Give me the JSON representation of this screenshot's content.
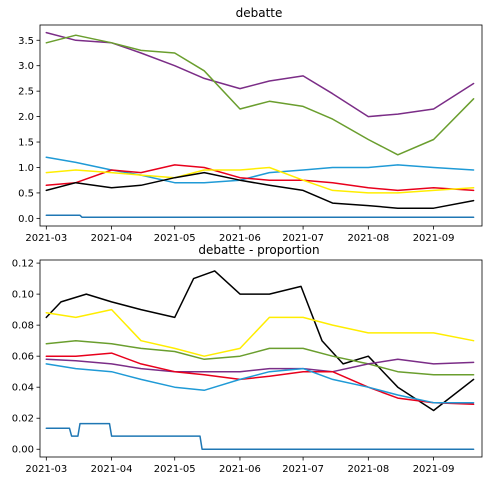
{
  "chart_data": [
    {
      "type": "line",
      "title": "debatte",
      "xlabel": "",
      "ylabel": "",
      "xlim": [
        "2021-02-26",
        "2021-09-24"
      ],
      "ylim": [
        -0.15,
        3.8
      ],
      "x_ticks": [
        "2021-03",
        "2021-04",
        "2021-05",
        "2021-06",
        "2021-07",
        "2021-08",
        "2021-09"
      ],
      "y_ticks": [
        "0.0",
        "0.5",
        "1.0",
        "1.5",
        "2.0",
        "2.5",
        "3.0",
        "3.5"
      ],
      "y_tick_values": [
        0,
        0.5,
        1,
        1.5,
        2,
        2.5,
        3,
        3.5
      ],
      "grid": false,
      "series": [
        {
          "color": "#7b2d87",
          "x": [
            "2021-03-01",
            "2021-03-15",
            "2021-04-01",
            "2021-04-15",
            "2021-05-01",
            "2021-05-15",
            "2021-06-01",
            "2021-06-15",
            "2021-07-01",
            "2021-07-15",
            "2021-08-01",
            "2021-08-15",
            "2021-09-01",
            "2021-09-20"
          ],
          "y": [
            3.65,
            3.5,
            3.45,
            3.25,
            3.0,
            2.75,
            2.55,
            2.7,
            2.8,
            2.45,
            2.0,
            2.05,
            2.15,
            2.65
          ]
        },
        {
          "color": "#6a9e2e",
          "x": [
            "2021-03-01",
            "2021-03-15",
            "2021-04-01",
            "2021-04-15",
            "2021-05-01",
            "2021-05-15",
            "2021-06-01",
            "2021-06-15",
            "2021-07-01",
            "2021-07-15",
            "2021-08-01",
            "2021-08-15",
            "2021-09-01",
            "2021-09-20"
          ],
          "y": [
            3.45,
            3.6,
            3.45,
            3.3,
            3.25,
            2.9,
            2.15,
            2.3,
            2.2,
            1.95,
            1.55,
            1.25,
            1.55,
            2.35
          ]
        },
        {
          "color": "#1f9ad6",
          "x": [
            "2021-03-01",
            "2021-03-15",
            "2021-04-01",
            "2021-04-15",
            "2021-05-01",
            "2021-05-15",
            "2021-06-01",
            "2021-06-15",
            "2021-07-01",
            "2021-07-15",
            "2021-08-01",
            "2021-08-15",
            "2021-09-01",
            "2021-09-20"
          ],
          "y": [
            1.2,
            1.1,
            0.95,
            0.85,
            0.7,
            0.7,
            0.75,
            0.9,
            0.95,
            1.0,
            1.0,
            1.05,
            1.0,
            0.95
          ]
        },
        {
          "color": "#e8001c",
          "x": [
            "2021-03-01",
            "2021-03-15",
            "2021-04-01",
            "2021-04-15",
            "2021-05-01",
            "2021-05-15",
            "2021-06-01",
            "2021-06-15",
            "2021-07-01",
            "2021-07-15",
            "2021-08-01",
            "2021-08-15",
            "2021-09-01",
            "2021-09-20"
          ],
          "y": [
            0.65,
            0.7,
            0.95,
            0.9,
            1.05,
            1.0,
            0.8,
            0.75,
            0.75,
            0.7,
            0.6,
            0.55,
            0.6,
            0.55
          ]
        },
        {
          "color": "#ffed00",
          "x": [
            "2021-03-01",
            "2021-03-15",
            "2021-04-01",
            "2021-04-15",
            "2021-05-01",
            "2021-05-15",
            "2021-06-01",
            "2021-06-15",
            "2021-07-01",
            "2021-07-15",
            "2021-08-01",
            "2021-08-15",
            "2021-09-01",
            "2021-09-20"
          ],
          "y": [
            0.9,
            0.95,
            0.9,
            0.85,
            0.8,
            0.95,
            0.95,
            1.0,
            0.75,
            0.55,
            0.5,
            0.5,
            0.55,
            0.6
          ]
        },
        {
          "color": "#000000",
          "x": [
            "2021-03-01",
            "2021-03-15",
            "2021-04-01",
            "2021-04-15",
            "2021-05-01",
            "2021-05-15",
            "2021-06-01",
            "2021-06-15",
            "2021-07-01",
            "2021-07-15",
            "2021-08-01",
            "2021-08-15",
            "2021-09-01",
            "2021-09-20"
          ],
          "y": [
            0.55,
            0.7,
            0.6,
            0.65,
            0.8,
            0.9,
            0.75,
            0.65,
            0.55,
            0.3,
            0.25,
            0.2,
            0.2,
            0.35
          ]
        },
        {
          "color": "#1f77b4",
          "x": [
            "2021-03-01",
            "2021-03-17",
            "2021-03-18",
            "2021-09-20"
          ],
          "y": [
            0.06,
            0.06,
            0.02,
            0.02
          ]
        }
      ]
    },
    {
      "type": "line",
      "title": "debatte - proportion",
      "xlabel": "",
      "ylabel": "",
      "xlim": [
        "2021-02-26",
        "2021-09-24"
      ],
      "ylim": [
        -0.005,
        0.122
      ],
      "x_ticks": [
        "2021-03",
        "2021-04",
        "2021-05",
        "2021-06",
        "2021-07",
        "2021-08",
        "2021-09"
      ],
      "y_ticks": [
        "0.00",
        "0.02",
        "0.04",
        "0.06",
        "0.08",
        "0.10",
        "0.12"
      ],
      "y_tick_values": [
        0,
        0.02,
        0.04,
        0.06,
        0.08,
        0.1,
        0.12
      ],
      "grid": false,
      "series": [
        {
          "color": "#000000",
          "x": [
            "2021-03-01",
            "2021-03-08",
            "2021-03-20",
            "2021-04-01",
            "2021-04-15",
            "2021-05-01",
            "2021-05-10",
            "2021-05-20",
            "2021-06-01",
            "2021-06-15",
            "2021-06-30",
            "2021-07-10",
            "2021-07-20",
            "2021-08-01",
            "2021-08-15",
            "2021-09-01",
            "2021-09-20"
          ],
          "y": [
            0.085,
            0.095,
            0.1,
            0.095,
            0.09,
            0.085,
            0.11,
            0.115,
            0.1,
            0.1,
            0.105,
            0.07,
            0.055,
            0.06,
            0.04,
            0.025,
            0.045
          ]
        },
        {
          "color": "#ffed00",
          "x": [
            "2021-03-01",
            "2021-03-15",
            "2021-04-01",
            "2021-04-15",
            "2021-05-01",
            "2021-05-15",
            "2021-06-01",
            "2021-06-15",
            "2021-07-01",
            "2021-07-15",
            "2021-08-01",
            "2021-08-15",
            "2021-09-01",
            "2021-09-20"
          ],
          "y": [
            0.088,
            0.085,
            0.09,
            0.07,
            0.065,
            0.06,
            0.065,
            0.085,
            0.085,
            0.08,
            0.075,
            0.075,
            0.075,
            0.07
          ]
        },
        {
          "color": "#6a9e2e",
          "x": [
            "2021-03-01",
            "2021-03-15",
            "2021-04-01",
            "2021-04-15",
            "2021-05-01",
            "2021-05-15",
            "2021-06-01",
            "2021-06-15",
            "2021-07-01",
            "2021-07-15",
            "2021-08-01",
            "2021-08-15",
            "2021-09-01",
            "2021-09-20"
          ],
          "y": [
            0.068,
            0.07,
            0.068,
            0.065,
            0.063,
            0.058,
            0.06,
            0.065,
            0.065,
            0.06,
            0.055,
            0.05,
            0.048,
            0.048
          ]
        },
        {
          "color": "#7b2d87",
          "x": [
            "2021-03-01",
            "2021-03-15",
            "2021-04-01",
            "2021-04-15",
            "2021-05-01",
            "2021-05-15",
            "2021-06-01",
            "2021-06-15",
            "2021-07-01",
            "2021-07-15",
            "2021-08-01",
            "2021-08-15",
            "2021-09-01",
            "2021-09-20"
          ],
          "y": [
            0.058,
            0.057,
            0.055,
            0.052,
            0.05,
            0.05,
            0.05,
            0.052,
            0.052,
            0.05,
            0.055,
            0.058,
            0.055,
            0.056
          ]
        },
        {
          "color": "#e8001c",
          "x": [
            "2021-03-01",
            "2021-03-15",
            "2021-04-01",
            "2021-04-15",
            "2021-05-01",
            "2021-05-15",
            "2021-06-01",
            "2021-06-15",
            "2021-07-01",
            "2021-07-15",
            "2021-08-01",
            "2021-08-15",
            "2021-09-01",
            "2021-09-20"
          ],
          "y": [
            0.06,
            0.06,
            0.062,
            0.055,
            0.05,
            0.048,
            0.045,
            0.047,
            0.05,
            0.05,
            0.04,
            0.033,
            0.03,
            0.029
          ]
        },
        {
          "color": "#1f9ad6",
          "x": [
            "2021-03-01",
            "2021-03-15",
            "2021-04-01",
            "2021-04-15",
            "2021-05-01",
            "2021-05-15",
            "2021-06-01",
            "2021-06-15",
            "2021-07-01",
            "2021-07-15",
            "2021-08-01",
            "2021-08-15",
            "2021-09-01",
            "2021-09-20"
          ],
          "y": [
            0.055,
            0.052,
            0.05,
            0.045,
            0.04,
            0.038,
            0.045,
            0.05,
            0.052,
            0.045,
            0.04,
            0.035,
            0.03,
            0.03
          ]
        },
        {
          "color": "#1f77b4",
          "x": [
            "2021-03-01",
            "2021-03-12",
            "2021-03-13",
            "2021-03-16",
            "2021-03-17",
            "2021-03-31",
            "2021-04-01",
            "2021-05-13",
            "2021-05-14",
            "2021-09-20"
          ],
          "y": [
            0.0135,
            0.0135,
            0.0085,
            0.0085,
            0.0165,
            0.0165,
            0.0085,
            0.0085,
            0.0,
            0.0
          ]
        }
      ]
    }
  ]
}
